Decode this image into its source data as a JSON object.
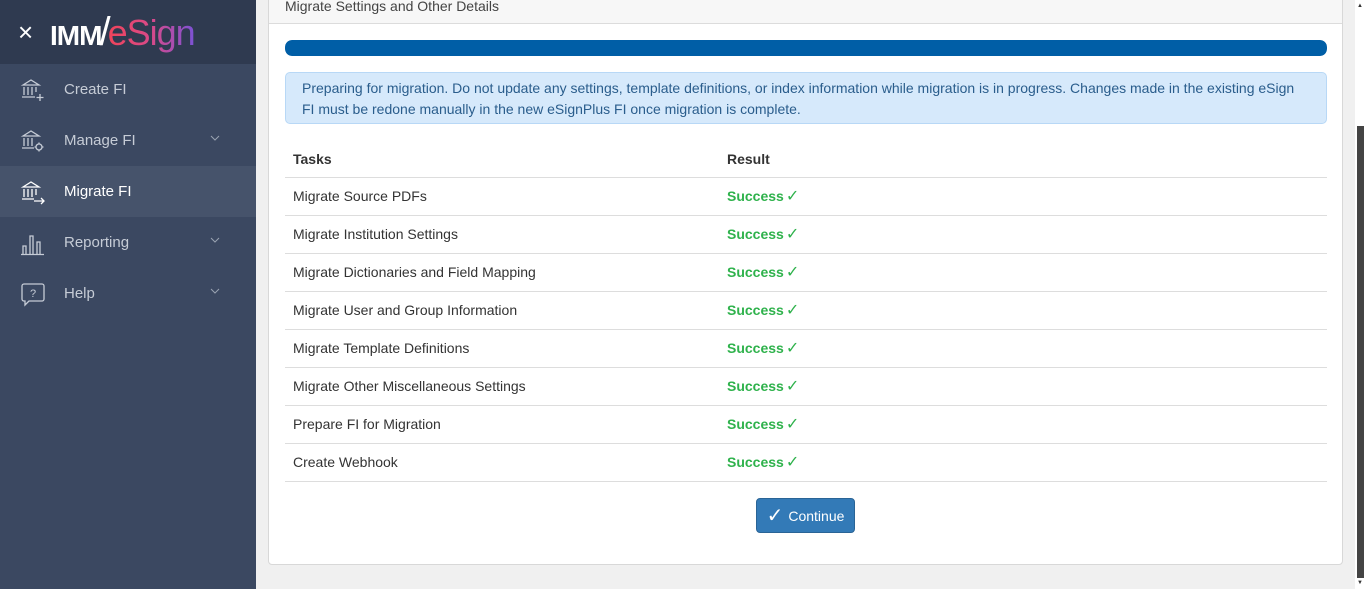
{
  "sidebar": {
    "logo_text": "IMM/eSign",
    "logo_parts": {
      "imm": "IMM",
      "slash": "/",
      "esign": "eSign"
    },
    "items": [
      {
        "label": "Create FI",
        "icon": "bank-plus-icon"
      },
      {
        "label": "Manage FI",
        "icon": "bank-gear-icon",
        "expandable": true
      },
      {
        "label": "Migrate FI",
        "icon": "bank-arrow-icon",
        "active": true
      },
      {
        "label": "Reporting",
        "icon": "bar-chart-icon",
        "expandable": true
      },
      {
        "label": "Help",
        "icon": "help-bubble-icon",
        "expandable": true
      }
    ]
  },
  "card": {
    "title": "Migrate Settings and Other Details",
    "progress_percent": 100,
    "alert": "Preparing for migration. Do not update any settings, template definitions, or index information while migration is in progress. Changes made in the existing eSign FI must be redone manually in the new eSignPlus FI once migration is complete.",
    "table": {
      "headers": [
        "Tasks",
        "Result"
      ],
      "rows": [
        {
          "task": "Migrate Source PDFs",
          "result": "Success"
        },
        {
          "task": "Migrate Institution Settings",
          "result": "Success"
        },
        {
          "task": "Migrate Dictionaries and Field Mapping",
          "result": "Success"
        },
        {
          "task": "Migrate User and Group Information",
          "result": "Success"
        },
        {
          "task": "Migrate Template Definitions",
          "result": "Success"
        },
        {
          "task": "Migrate Other Miscellaneous Settings",
          "result": "Success"
        },
        {
          "task": "Prepare FI for Migration",
          "result": "Success"
        },
        {
          "task": "Create Webhook",
          "result": "Success"
        }
      ]
    },
    "continue_label": "Continue"
  },
  "colors": {
    "sidebar": "#3b4861",
    "progress": "#005ea6",
    "success": "#2fb24c",
    "button": "#337ab7"
  }
}
